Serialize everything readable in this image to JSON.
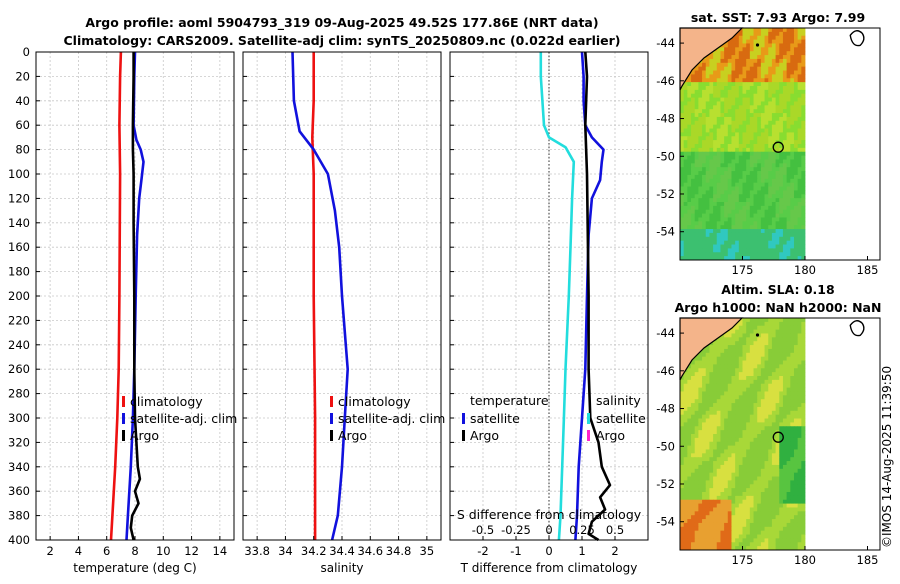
{
  "chart_data": {
    "type": "line",
    "title_line1": "Argo profile: aoml 5904793_319 09-Aug-2025 49.52S 177.86E (NRT data)",
    "title_line2": "Climatology: CARS2009. Satellite-adj clim: synTS_20250809.nc (0.022d earlier)",
    "y_ticks": [
      "0",
      "20",
      "40",
      "60",
      "80",
      "100",
      "120",
      "140",
      "160",
      "180",
      "200",
      "220",
      "240",
      "260",
      "280",
      "300",
      "320",
      "340",
      "360",
      "380",
      "400"
    ],
    "ylim": [
      400,
      0
    ],
    "colors": {
      "climatology": "#ee1111",
      "satellite": "#1111dd",
      "argo": "#000000",
      "cyan": "#22dddd",
      "magenta": "#ff22cc"
    },
    "panels": [
      {
        "name": "temperature",
        "xlabel": "temperature (deg C)",
        "xlim": [
          1,
          15
        ],
        "x_ticks": [
          "2",
          "4",
          "6",
          "8",
          "10",
          "12",
          "14"
        ],
        "legend": [
          "climatology",
          "satellite-adj. clim",
          "Argo"
        ],
        "series": [
          {
            "name": "climatology",
            "color": "#ee1111",
            "depth": [
              0,
              20,
              60,
              100,
              200,
              260,
              300,
              340,
              380,
              400
            ],
            "values": [
              7.0,
              6.95,
              6.9,
              6.95,
              6.9,
              6.85,
              6.75,
              6.6,
              6.4,
              6.3
            ]
          },
          {
            "name": "satellite-adj. clim",
            "color": "#1111dd",
            "depth": [
              0,
              20,
              60,
              72,
              80,
              90,
              105,
              120,
              150,
              200,
              260,
              300,
              340,
              380,
              400
            ],
            "values": [
              8.0,
              7.95,
              7.9,
              8.1,
              8.4,
              8.6,
              8.45,
              8.3,
              8.15,
              8.05,
              7.95,
              7.85,
              7.7,
              7.5,
              7.4
            ]
          },
          {
            "name": "Argo",
            "color": "#000000",
            "depth": [
              0,
              20,
              60,
              80,
              100,
              140,
              200,
              260,
              300,
              320,
              340,
              350,
              360,
              370,
              380,
              390,
              400
            ],
            "values": [
              7.9,
              7.9,
              7.85,
              7.85,
              7.9,
              7.9,
              7.95,
              7.95,
              8.0,
              8.1,
              8.2,
              8.35,
              8.0,
              8.25,
              7.8,
              7.7,
              7.9
            ]
          }
        ]
      },
      {
        "name": "salinity",
        "xlabel": "salinity",
        "xlim": [
          33.7,
          35.1
        ],
        "x_ticks": [
          "33.8",
          "34",
          "34.2",
          "34.4",
          "34.6",
          "34.8",
          "35"
        ],
        "legend": [
          "climatology",
          "satellite-adj. clim",
          "Argo"
        ],
        "series": [
          {
            "name": "climatology",
            "color": "#ee1111",
            "depth": [
              0,
              40,
              70,
              100,
              200,
              300,
              400
            ],
            "values": [
              34.2,
              34.2,
              34.19,
              34.2,
              34.2,
              34.21,
              34.21
            ]
          },
          {
            "name": "satellite-adj. clim",
            "color": "#1111dd",
            "depth": [
              0,
              40,
              65,
              80,
              100,
              130,
              160,
              200,
              260,
              300,
              340,
              380,
              400
            ],
            "values": [
              34.05,
              34.06,
              34.1,
              34.2,
              34.3,
              34.35,
              34.38,
              34.4,
              34.44,
              34.42,
              34.4,
              34.37,
              34.33
            ]
          }
        ]
      },
      {
        "name": "difference",
        "xlabel": "T difference from climatology",
        "xlim": [
          -3,
          3
        ],
        "x_ticks": [
          "-2",
          "-1",
          "0",
          "1",
          "2"
        ],
        "s_axis_label": "S difference from climatology",
        "s_ticks": [
          "-0.5",
          "-0.25",
          "0",
          "0.25",
          "0.5"
        ],
        "legend_left_title": "temperature",
        "legend_left": [
          "satellite",
          "Argo"
        ],
        "legend_right_title": "salinity",
        "legend_right": [
          "satellite",
          "Argo"
        ],
        "series": [
          {
            "name": "T satellite",
            "color": "#22dddd",
            "depth": [
              0,
              20,
              40,
              60,
              70,
              78,
              90,
              120,
              160,
              200,
              260,
              300,
              340,
              380,
              400
            ],
            "values": [
              -0.25,
              -0.25,
              -0.2,
              -0.15,
              0.0,
              0.5,
              0.75,
              0.7,
              0.65,
              0.6,
              0.5,
              0.45,
              0.4,
              0.35,
              0.3
            ]
          },
          {
            "name": "S satellite",
            "color": "#1111dd",
            "depth": [
              0,
              20,
              40,
              60,
              70,
              80,
              90,
              105,
              120,
              150,
              200,
              260,
              300,
              340,
              380,
              400
            ],
            "values": [
              1.0,
              1.05,
              1.05,
              1.1,
              1.3,
              1.65,
              1.6,
              1.55,
              1.3,
              1.2,
              1.15,
              1.1,
              1.0,
              0.9,
              0.85,
              0.8
            ]
          },
          {
            "name": "T Argo",
            "color": "#000000",
            "depth": [
              0,
              20,
              60,
              100,
              200,
              260,
              300,
              320,
              340,
              355,
              365,
              375,
              385,
              395,
              400
            ],
            "values": [
              1.1,
              1.15,
              1.1,
              1.15,
              1.2,
              1.2,
              1.25,
              1.5,
              1.6,
              1.85,
              1.55,
              1.7,
              1.3,
              1.2,
              1.5
            ]
          }
        ]
      }
    ],
    "maps": [
      {
        "name": "sst-map",
        "title": "sat. SST: 7.93 Argo: 7.99",
        "y_ticks": [
          "-44",
          "-46",
          "-48",
          "-50",
          "-52",
          "-54"
        ],
        "x_ticks": [
          "175",
          "180",
          "185"
        ],
        "marker": {
          "lon": 177.86,
          "lat": -49.52
        }
      },
      {
        "name": "sla-map",
        "title_line1": "Altim. SLA: 0.18",
        "title_line2": "Argo h1000: NaN h2000: NaN",
        "y_ticks": [
          "-44",
          "-46",
          "-48",
          "-50",
          "-52",
          "-54"
        ],
        "x_ticks": [
          "175",
          "180",
          "185"
        ],
        "marker": {
          "lon": 177.86,
          "lat": -49.52
        }
      }
    ]
  },
  "timestamp": "©IMOS 14-Aug-2025 11:39:50"
}
